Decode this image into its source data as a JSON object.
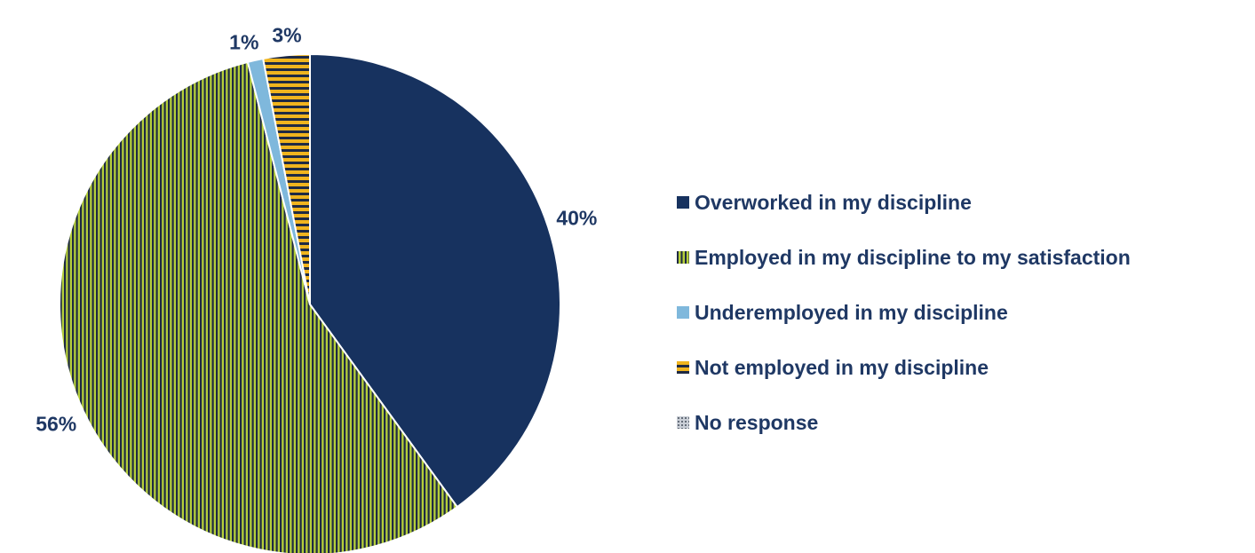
{
  "chart_data": {
    "type": "pie",
    "title": "",
    "categories": [
      "Overworked in my discipline",
      "Employed in my discipline to my satisfaction",
      "Underemployed in my discipline",
      "Not employed in my discipline",
      "No response"
    ],
    "values": [
      40,
      56,
      1,
      3,
      0
    ],
    "data_labels": [
      "40%",
      "56%",
      "1%",
      "3%",
      ""
    ],
    "colors": [
      "#17325f",
      "#b5cf3a",
      "#7fb8dc",
      "#f0b41e",
      "#9aa0a8"
    ],
    "pattern_stripe_color": "#1f2a44",
    "patterns": [
      "solid",
      "vertical-stripes",
      "solid",
      "horizontal-stripes",
      "dots"
    ],
    "legend_position": "right"
  }
}
